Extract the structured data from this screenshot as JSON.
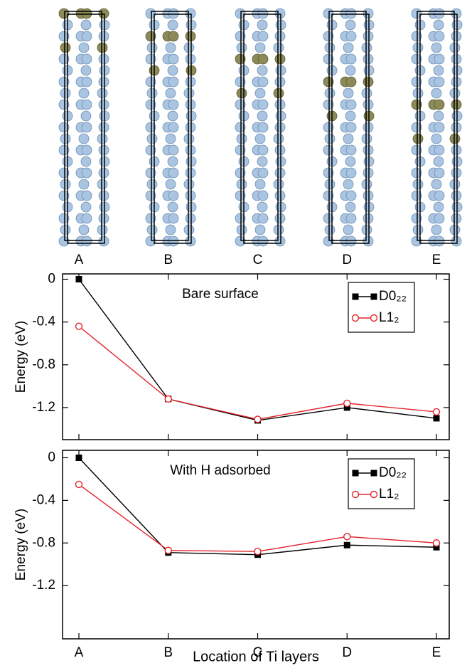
{
  "chart_data": [
    {
      "type": "line",
      "annotation": "Bare surface",
      "y_label": "Energy (eV)",
      "categories": [
        "A",
        "B",
        "C",
        "D",
        "E"
      ],
      "ylim": [
        -1.5,
        0.05
      ],
      "yticks": [
        0,
        -0.4,
        -0.8,
        -1.2
      ],
      "legend": "upper right",
      "series": [
        {
          "name": "D0₂₂",
          "color": "#000000",
          "marker": "square",
          "values": [
            0,
            -1.12,
            -1.32,
            -1.2,
            -1.3
          ]
        },
        {
          "name": "L1₂",
          "color": "#e3242b",
          "marker": "circle",
          "values": [
            -0.44,
            -1.12,
            -1.31,
            -1.16,
            -1.24
          ]
        }
      ]
    },
    {
      "type": "line",
      "annotation": "With H adsorbed",
      "y_label": "Energy (eV)",
      "x_label": "Location of Ti layers",
      "categories": [
        "A",
        "B",
        "C",
        "D",
        "E"
      ],
      "ylim": [
        -1.7,
        0.07
      ],
      "yticks": [
        0,
        -0.4,
        -0.8,
        -1.2
      ],
      "legend": "upper right",
      "series": [
        {
          "name": "D0₂₂",
          "color": "#000000",
          "marker": "square",
          "values": [
            0,
            -0.89,
            -0.91,
            -0.82,
            -0.84
          ]
        },
        {
          "name": "L1₂",
          "color": "#e3242b",
          "marker": "circle",
          "values": [
            -0.25,
            -0.87,
            -0.88,
            -0.74,
            -0.8
          ]
        }
      ]
    }
  ]
}
